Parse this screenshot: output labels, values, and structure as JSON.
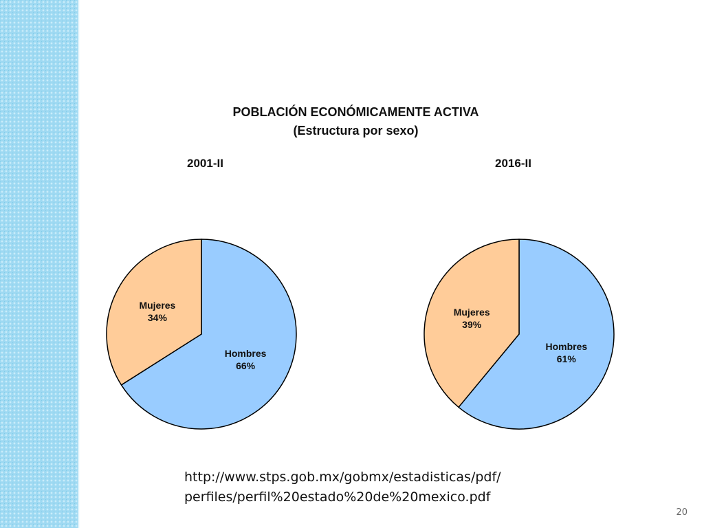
{
  "slide": {
    "title_line1": "POBLACIÓN ECONÓMICAMENTE ACTIVA",
    "title_line2": "(Estructura por sexo)",
    "source_line1": "http://www.stps.gob.mx/gobmx/estadisticas/pdf/",
    "source_line2": "perfiles/perfil%20estado%20de%20mexico.pdf",
    "page_number": "20"
  },
  "colors": {
    "hombres": "#99ccff",
    "mujeres": "#ffcc99",
    "side_band": "#9ed9f2"
  },
  "chart_data": [
    {
      "type": "pie",
      "title": "2001-II",
      "slices": [
        {
          "label": "Hombres",
          "value": 66,
          "value_label": "66%"
        },
        {
          "label": "Mujeres",
          "value": 34,
          "value_label": "34%"
        }
      ]
    },
    {
      "type": "pie",
      "title": "2016-II",
      "slices": [
        {
          "label": "Hombres",
          "value": 61,
          "value_label": "61%"
        },
        {
          "label": "Mujeres",
          "value": 39,
          "value_label": "39%"
        }
      ]
    }
  ]
}
